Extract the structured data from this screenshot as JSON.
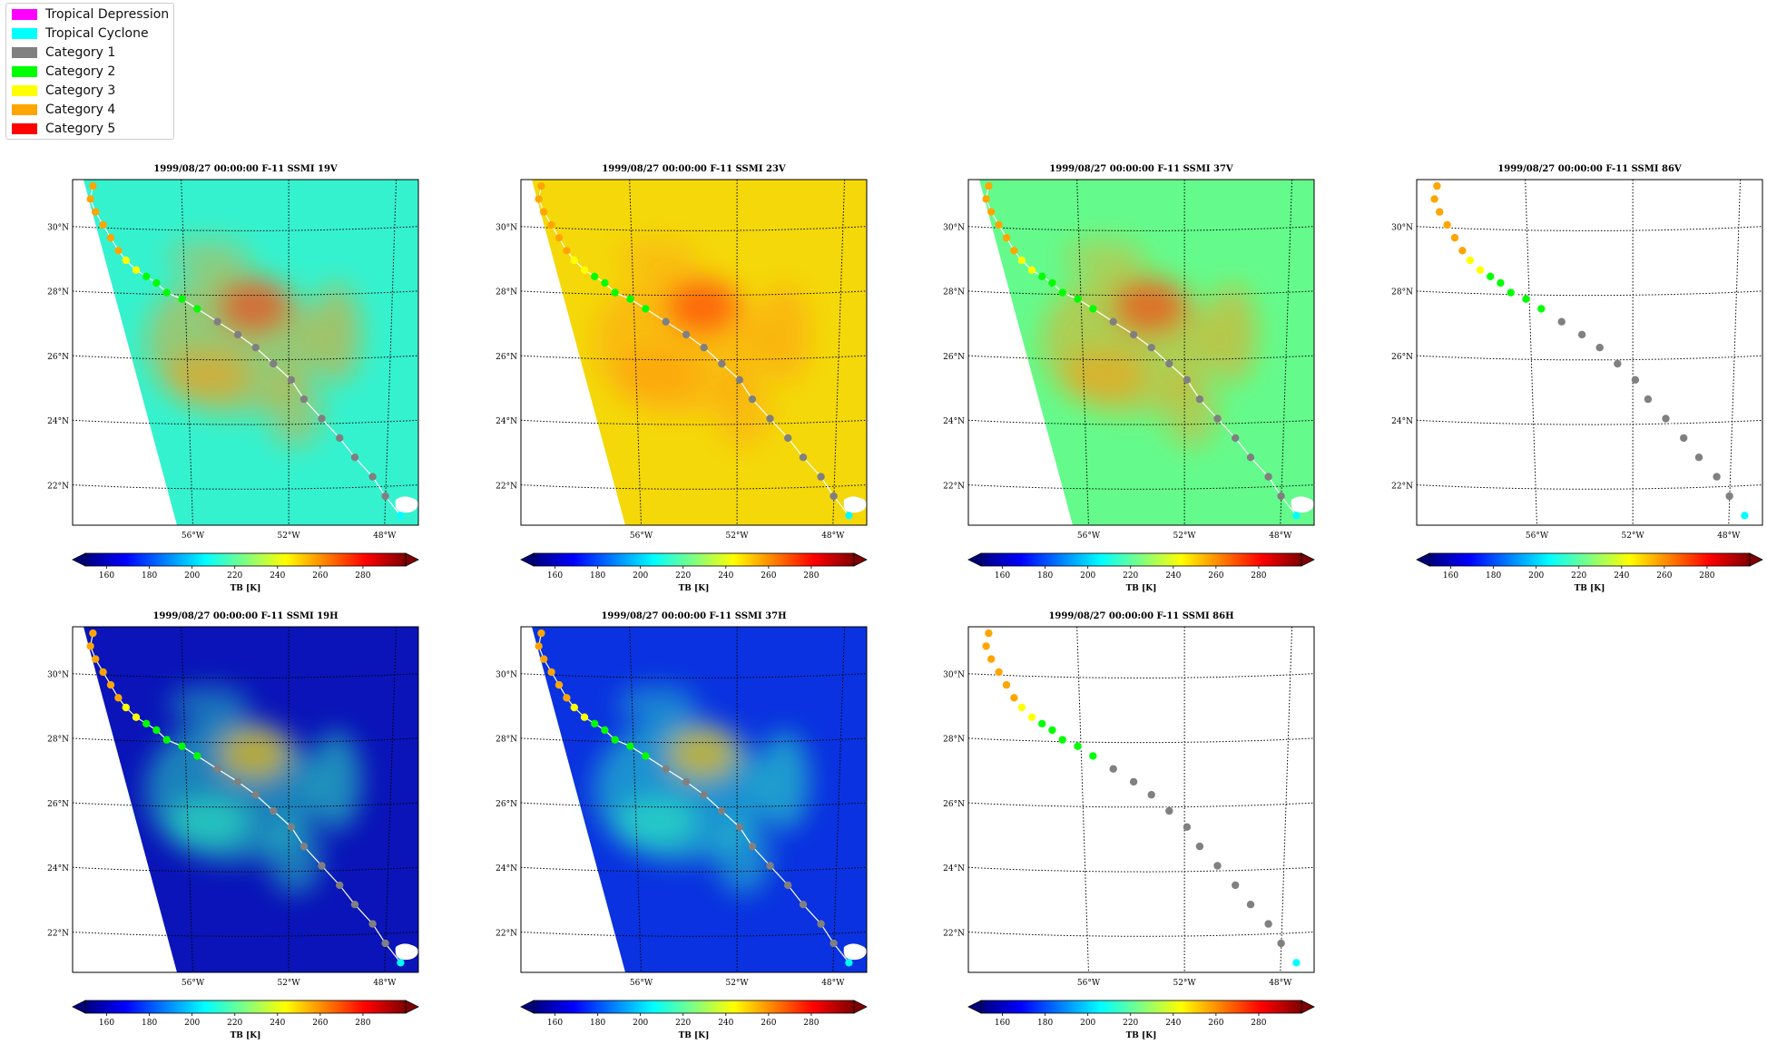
{
  "legend": {
    "items": [
      {
        "label": "Tropical Depression",
        "color": "#ff00ff"
      },
      {
        "label": "Tropical Cyclone",
        "color": "#00ffff"
      },
      {
        "label": "Category 1",
        "color": "#808080"
      },
      {
        "label": "Category 2",
        "color": "#00ff00"
      },
      {
        "label": "Category 3",
        "color": "#ffff00"
      },
      {
        "label": "Category 4",
        "color": "#ffa500"
      },
      {
        "label": "Category 5",
        "color": "#ff0000"
      }
    ]
  },
  "chart_data": [
    {
      "type": "heatmap",
      "title": "1999/08/27 00:00:00  F-11 SSMI 19V",
      "fill": "#35f2cf",
      "colorbar_label": "TB [K]"
    },
    {
      "type": "heatmap",
      "title": "1999/08/27 00:00:00  F-11 SSMI 23V",
      "fill": "#f4d80a",
      "colorbar_label": "TB [K]"
    },
    {
      "type": "heatmap",
      "title": "1999/08/27 00:00:00  F-11 SSMI 37V",
      "fill": "#64fb8c",
      "colorbar_label": "TB [K]"
    },
    {
      "type": "heatmap",
      "title": "1999/08/27 00:00:00  F-11 SSMI 86V",
      "fill": "none",
      "colorbar_label": "TB [K]"
    },
    {
      "type": "heatmap",
      "title": "1999/08/27 00:00:00  F-11 SSMI 19H",
      "fill": "#0a14b8",
      "colorbar_label": "TB [K]"
    },
    {
      "type": "heatmap",
      "title": "1999/08/27 00:00:00  F-11 SSMI 37H",
      "fill": "#0a32e0",
      "colorbar_label": "TB [K]"
    },
    {
      "type": "heatmap",
      "title": "1999/08/27 00:00:00  F-11 SSMI 86H",
      "fill": "none",
      "colorbar_label": "TB [K]"
    }
  ],
  "axes": {
    "lat_labels": [
      "30°N",
      "28°N",
      "26°N",
      "24°N",
      "22°N"
    ],
    "lon_labels": [
      "56°W",
      "52°W",
      "48°W"
    ]
  },
  "colorbar": {
    "ticks": [
      "160",
      "180",
      "200",
      "220",
      "240",
      "260",
      "280"
    ],
    "range": [
      150,
      300
    ],
    "colors": [
      "#00007f",
      "#0000ff",
      "#0080ff",
      "#00ffff",
      "#80ff80",
      "#ffff00",
      "#ff8000",
      "#ff0000",
      "#7f0000"
    ]
  },
  "track": {
    "points": [
      {
        "lon": -59.7,
        "lat": 31.3,
        "cat": "Category 4"
      },
      {
        "lon": -59.8,
        "lat": 30.9,
        "cat": "Category 4"
      },
      {
        "lon": -59.6,
        "lat": 30.5,
        "cat": "Category 4"
      },
      {
        "lon": -59.3,
        "lat": 30.1,
        "cat": "Category 4"
      },
      {
        "lon": -59.0,
        "lat": 29.7,
        "cat": "Category 4"
      },
      {
        "lon": -58.7,
        "lat": 29.3,
        "cat": "Category 4"
      },
      {
        "lon": -58.4,
        "lat": 29.0,
        "cat": "Category 3"
      },
      {
        "lon": -58.0,
        "lat": 28.7,
        "cat": "Category 3"
      },
      {
        "lon": -57.6,
        "lat": 28.5,
        "cat": "Category 2"
      },
      {
        "lon": -57.2,
        "lat": 28.3,
        "cat": "Category 2"
      },
      {
        "lon": -56.8,
        "lat": 28.0,
        "cat": "Category 2"
      },
      {
        "lon": -56.2,
        "lat": 27.8,
        "cat": "Category 2"
      },
      {
        "lon": -55.6,
        "lat": 27.5,
        "cat": "Category 2"
      },
      {
        "lon": -54.8,
        "lat": 27.1,
        "cat": "Category 1"
      },
      {
        "lon": -54.0,
        "lat": 26.7,
        "cat": "Category 1"
      },
      {
        "lon": -53.3,
        "lat": 26.3,
        "cat": "Category 1"
      },
      {
        "lon": -52.6,
        "lat": 25.8,
        "cat": "Category 1"
      },
      {
        "lon": -51.9,
        "lat": 25.3,
        "cat": "Category 1"
      },
      {
        "lon": -51.4,
        "lat": 24.7,
        "cat": "Category 1"
      },
      {
        "lon": -50.7,
        "lat": 24.1,
        "cat": "Category 1"
      },
      {
        "lon": -50.0,
        "lat": 23.5,
        "cat": "Category 1"
      },
      {
        "lon": -49.4,
        "lat": 22.9,
        "cat": "Category 1"
      },
      {
        "lon": -48.7,
        "lat": 22.3,
        "cat": "Category 1"
      },
      {
        "lon": -48.2,
        "lat": 21.7,
        "cat": "Category 1"
      },
      {
        "lon": -47.6,
        "lat": 21.1,
        "cat": "Tropical Cyclone"
      }
    ]
  }
}
